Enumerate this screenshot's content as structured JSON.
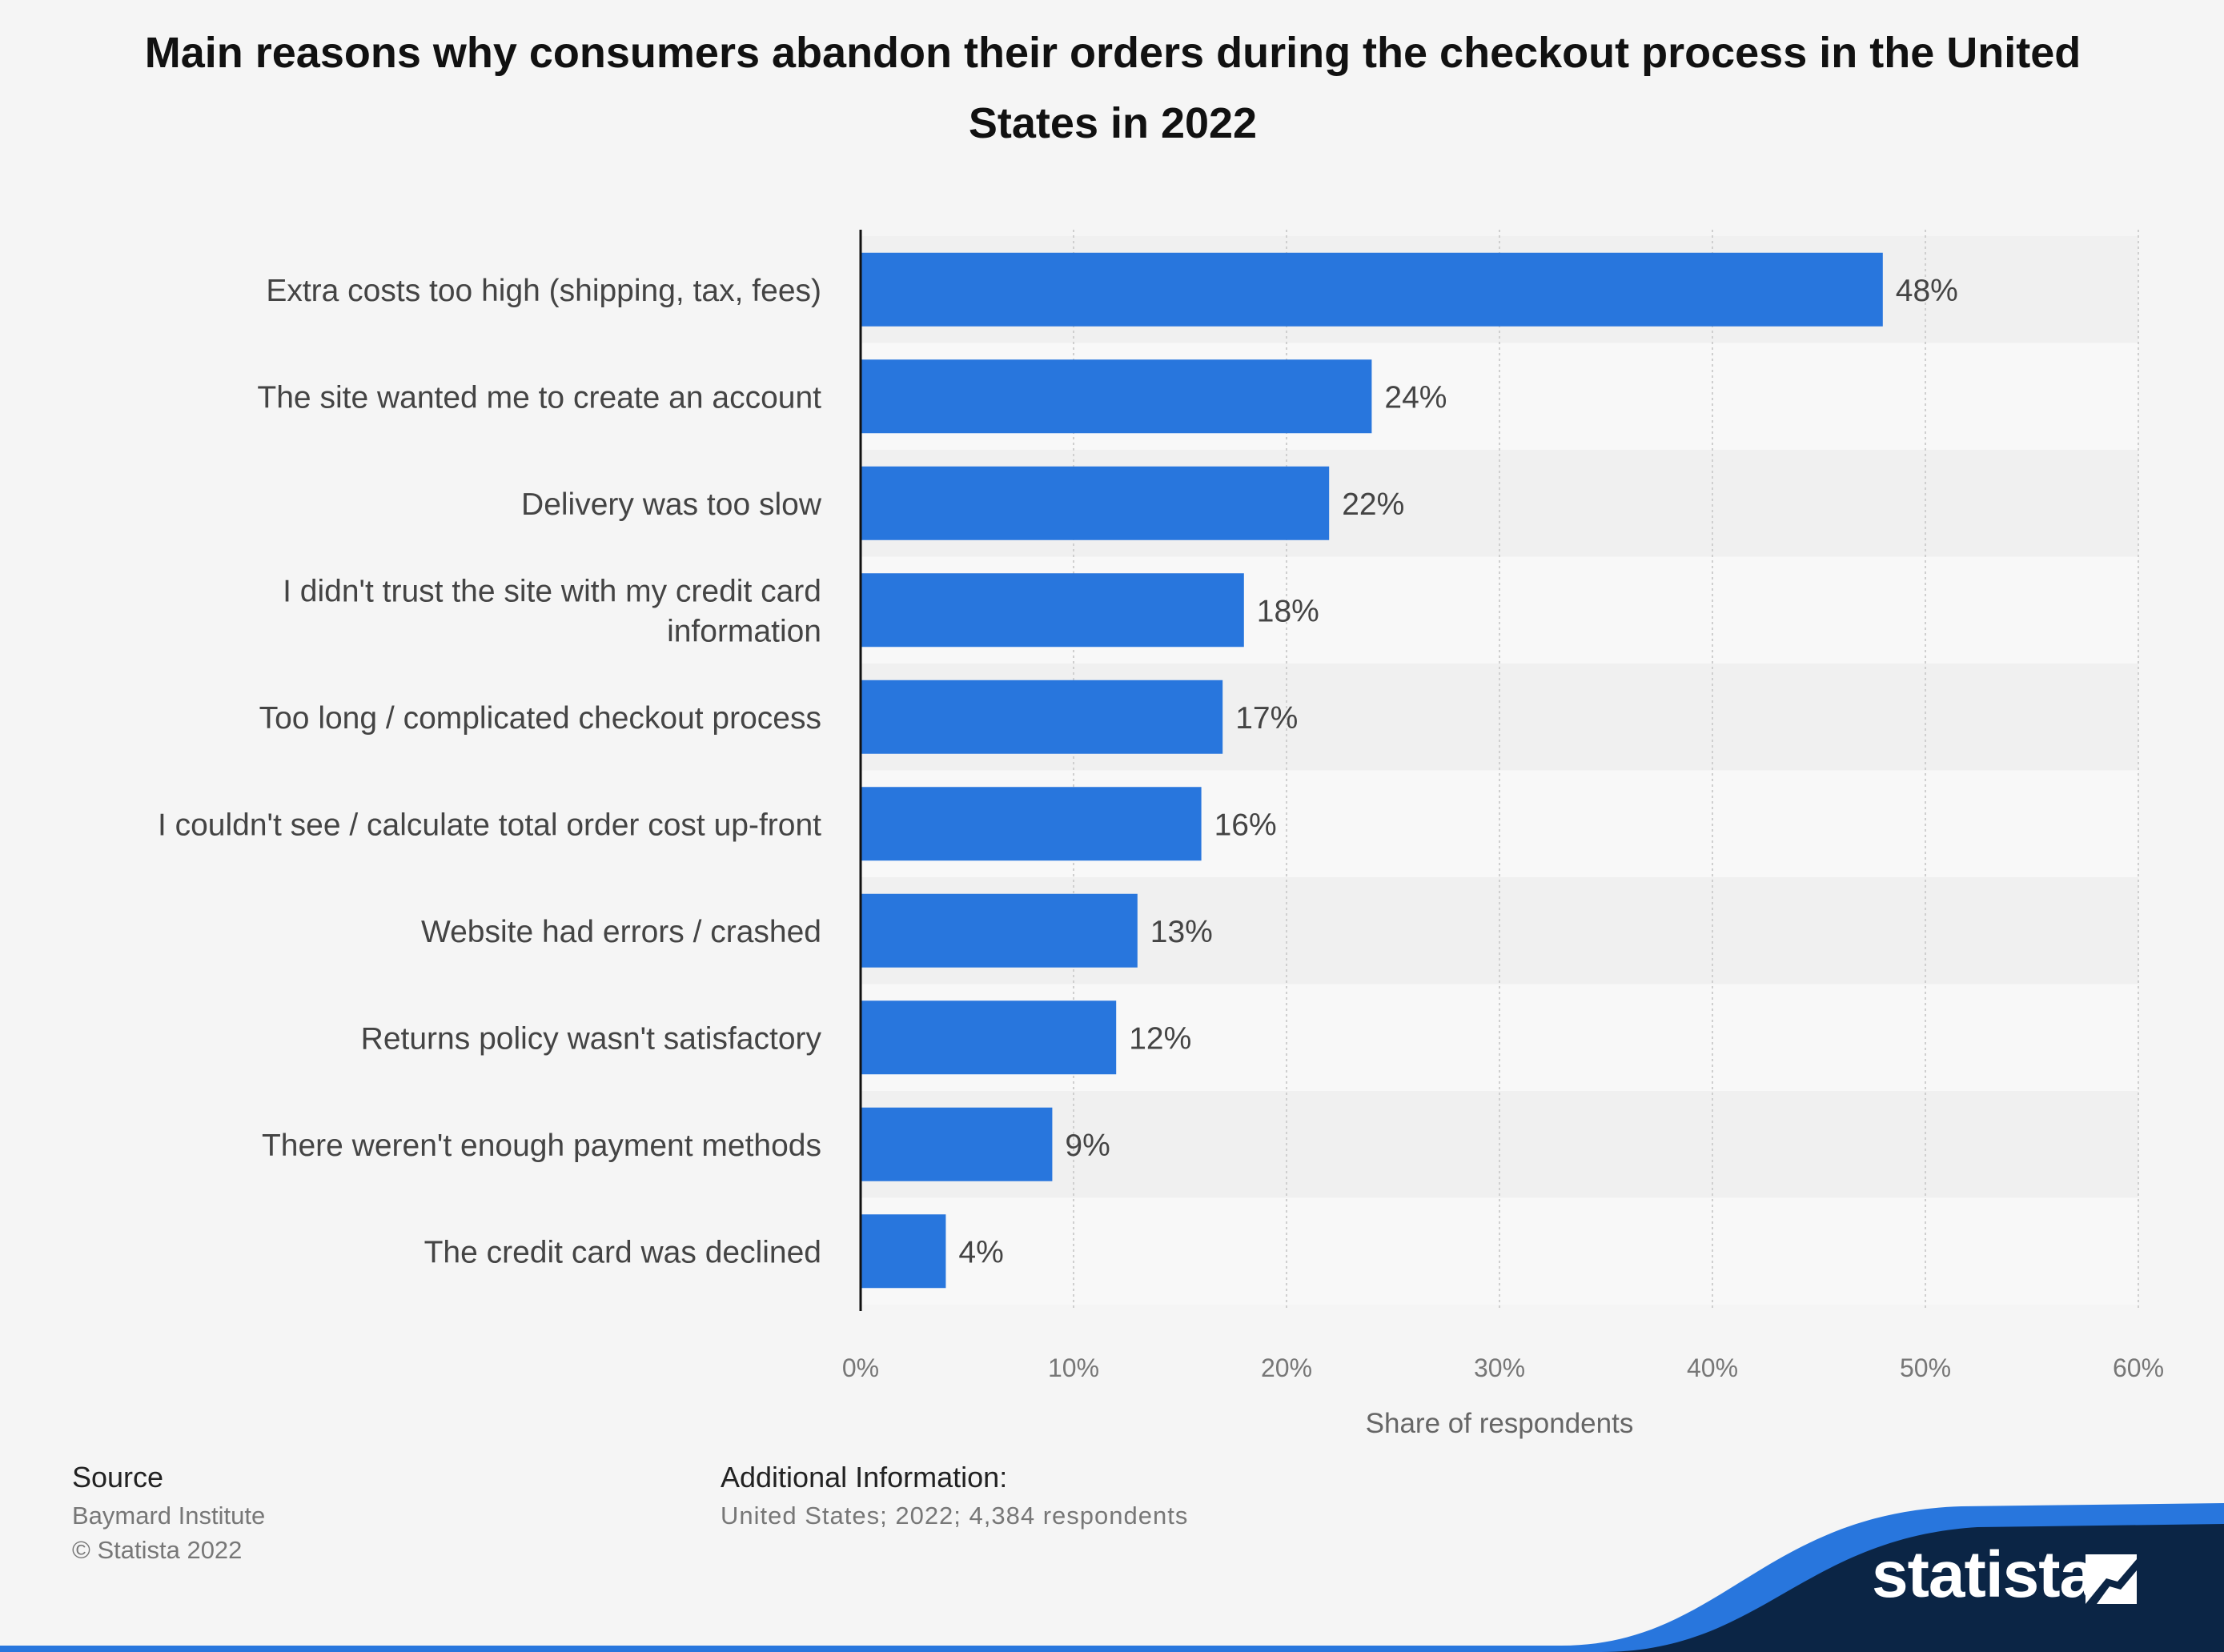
{
  "title": "Main reasons why consumers abandon their orders during the checkout process in the United States in 2022",
  "chart_data": {
    "type": "bar",
    "orientation": "horizontal",
    "title": "Main reasons why consumers abandon their orders during the checkout process in the United States in 2022",
    "categories": [
      [
        "Extra costs too high (shipping, tax, fees)"
      ],
      [
        "The site wanted me to create an account"
      ],
      [
        "Delivery was too slow"
      ],
      [
        "I didn't trust the site with my credit card",
        "information"
      ],
      [
        "Too long / complicated checkout process"
      ],
      [
        "I couldn't see / calculate total order cost up-front"
      ],
      [
        "Website had errors / crashed"
      ],
      [
        "Returns policy wasn't satisfactory"
      ],
      [
        "There weren't enough payment methods"
      ],
      [
        "The credit card was declined"
      ]
    ],
    "values": [
      48,
      24,
      22,
      18,
      17,
      16,
      13,
      12,
      9,
      4
    ],
    "value_labels": [
      "48%",
      "24%",
      "22%",
      "18%",
      "17%",
      "16%",
      "13%",
      "12%",
      "9%",
      "4%"
    ],
    "xlabel": "Share of respondents",
    "ylabel": "",
    "xlim": [
      0,
      60
    ],
    "ticks": [
      0,
      10,
      20,
      30,
      40,
      50,
      60
    ],
    "tick_labels": [
      "0%",
      "10%",
      "20%",
      "30%",
      "40%",
      "50%",
      "60%"
    ],
    "grid": true,
    "bar_color": "#2876dd"
  },
  "footer": {
    "source_heading": "Source",
    "source_name": "Baymard Institute",
    "copyright": "© Statista 2022",
    "additional_heading": "Additional Information:",
    "additional_text": "United States; 2022; 4,384 respondents"
  },
  "brand": {
    "wordmark": "statista",
    "logo_icon": "statista-logo-icon",
    "dark_color": "#0b2545",
    "accent_color": "#2876dd"
  }
}
